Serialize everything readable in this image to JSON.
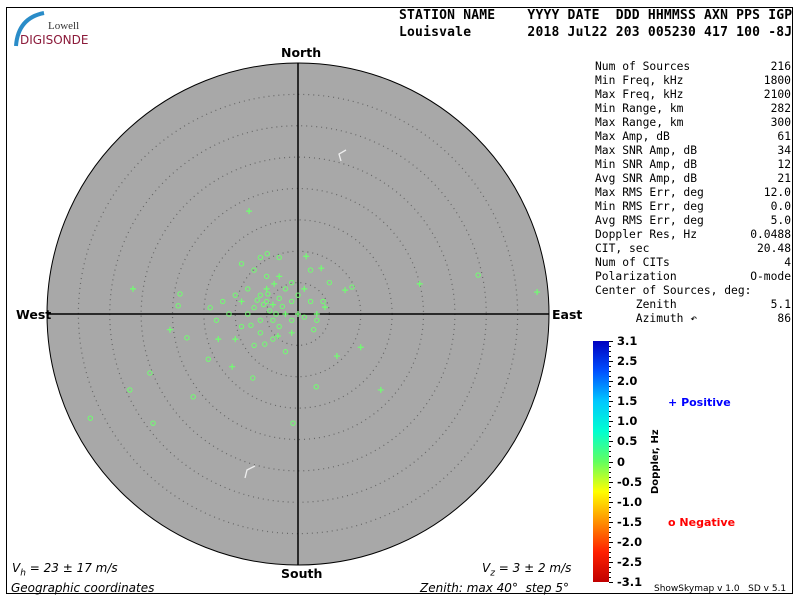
{
  "logo": {
    "line1": "Lowell",
    "line2": "DIGISONDE"
  },
  "header": {
    "labels": "STATION NAME    YYYY DATE  DDD HHMMSS AXN PPS IGP",
    "values": "Louisvale       2018 Jul22 203 005230 417 100 -8J"
  },
  "compass": {
    "north": "North",
    "south": "South",
    "west": "West",
    "east": "East"
  },
  "stats": [
    {
      "label": "Num of Sources",
      "value": "216"
    },
    {
      "label": "Min Freq, kHz",
      "value": "1800"
    },
    {
      "label": "Max Freq, kHz",
      "value": "2100"
    },
    {
      "label": "Min Range, km",
      "value": "282"
    },
    {
      "label": "Max Range, km",
      "value": "300"
    },
    {
      "label": "Max Amp, dB",
      "value": "61"
    },
    {
      "label": "Max SNR Amp, dB",
      "value": "34"
    },
    {
      "label": "Min SNR Amp, dB",
      "value": "12"
    },
    {
      "label": "Avg SNR Amp, dB",
      "value": "21"
    },
    {
      "label": "Max RMS Err, deg",
      "value": "12.0"
    },
    {
      "label": "Min RMS Err, deg",
      "value": "0.0"
    },
    {
      "label": "Avg RMS Err, deg",
      "value": "5.0"
    },
    {
      "label": "Doppler Res, Hz",
      "value": "0.0488"
    },
    {
      "label": "CIT, sec",
      "value": "20.48"
    },
    {
      "label": "Num of CITs",
      "value": "4"
    },
    {
      "label": "Polarization",
      "value": "O-mode"
    },
    {
      "label": "Center of Sources, deg:",
      "value": ""
    },
    {
      "label": "      Zenith",
      "value": "5.1"
    },
    {
      "label": "      Azimuth ↶",
      "value": "86"
    }
  ],
  "velocity": {
    "vh_sym": "V",
    "vh_sub": "h",
    "vh_text": " = 23 ± 17 m/s",
    "vz_sym": "V",
    "vz_sub": "z",
    "vz_text": " = 3 ± 2 m/s"
  },
  "footer": {
    "coords": "Geographic coordinates",
    "zenith": "Zenith: max 40°  step 5°",
    "version": "ShowSkymap v 1.0   SD v 5.1"
  },
  "colorbar": {
    "title": "Doppler, Hz",
    "ticks": [
      "3.1",
      "2.5",
      "2.0",
      "1.5",
      "1.0",
      "0.5",
      "0",
      "-0.5",
      "-1.0",
      "-1.5",
      "-2.0",
      "-2.5",
      "-3.1"
    ],
    "colors": [
      "#0000c0",
      "#0050ff",
      "#00c8ff",
      "#00ffd0",
      "#60ff60",
      "#ffff00",
      "#ff9000",
      "#ff2000",
      "#c00000"
    ]
  },
  "legend": {
    "positive": "Positive",
    "negative": "Negative",
    "positive_symbol": "+",
    "negative_symbol": "o",
    "positive_color": "#0000ff",
    "negative_color": "#ff0000"
  },
  "chart_data": {
    "type": "scatter",
    "projection": "polar skymap, zenith angle vs azimuth",
    "zenith_max_deg": 40,
    "zenith_step_deg": 5,
    "point_color": "#70ff70",
    "plot_background": "#a8a8a8",
    "points_note_units": "east/north zenith-angle components, deg",
    "points": [
      [
        -7.8,
        16.4,
        "+"
      ],
      [
        -26.3,
        4.0,
        "+"
      ],
      [
        28.7,
        6.2,
        "o"
      ],
      [
        38.1,
        3.5,
        "+"
      ],
      [
        19.4,
        4.8,
        "+"
      ],
      [
        -33.1,
        -16.6,
        "o"
      ],
      [
        -26.8,
        -12.1,
        "o"
      ],
      [
        -23.1,
        -17.4,
        "o"
      ],
      [
        -0.8,
        -17.4,
        "o"
      ],
      [
        13.2,
        -12.1,
        "+"
      ],
      [
        2.9,
        -11.6,
        "o"
      ],
      [
        6.2,
        -6.7,
        "+"
      ],
      [
        10.0,
        -5.3,
        "+"
      ],
      [
        -16.7,
        -13.2,
        "o"
      ],
      [
        -23.6,
        -9.4,
        "o"
      ],
      [
        -20.4,
        -2.5,
        "+"
      ],
      [
        -19.1,
        1.3,
        "o"
      ],
      [
        -18.8,
        3.2,
        "o"
      ],
      [
        -4.9,
        9.6,
        "o"
      ],
      [
        1.3,
        9.2,
        "+"
      ],
      [
        3.7,
        7.3,
        "+"
      ],
      [
        7.5,
        3.8,
        "+"
      ],
      [
        8.6,
        4.3,
        "o"
      ],
      [
        4.3,
        1.1,
        "+"
      ],
      [
        2.5,
        -2.5,
        "o"
      ],
      [
        -7.2,
        -10.2,
        "o"
      ],
      [
        -10.5,
        -8.4,
        "+"
      ],
      [
        -14.3,
        -7.2,
        "o"
      ],
      [
        -12.7,
        -4.0,
        "+"
      ],
      [
        -17.7,
        -3.8,
        "o"
      ],
      [
        -5.3,
        -4.8,
        "o"
      ],
      [
        -3.2,
        -3.5,
        "+"
      ],
      [
        -6,
        3,
        "o"
      ],
      [
        -5,
        2,
        "o"
      ],
      [
        -4,
        1.5,
        "+"
      ],
      [
        -3,
        2.5,
        "o"
      ],
      [
        -7,
        1,
        "o"
      ],
      [
        -8,
        0,
        "o"
      ],
      [
        -9,
        2,
        "+"
      ],
      [
        -6,
        -1,
        "o"
      ],
      [
        -4,
        -1,
        "o"
      ],
      [
        -2,
        0,
        "+"
      ],
      [
        -1,
        2,
        "o"
      ],
      [
        0,
        3,
        "o"
      ],
      [
        -2,
        4,
        "o"
      ],
      [
        -5,
        4,
        "+"
      ],
      [
        -8,
        4,
        "o"
      ],
      [
        -10,
        3,
        "o"
      ],
      [
        -3,
        -2,
        "o"
      ],
      [
        -1,
        -1,
        "o"
      ],
      [
        1,
        -0.5,
        "o"
      ],
      [
        -6,
        -3,
        "o"
      ],
      [
        -9,
        -2,
        "o"
      ],
      [
        -11,
        0,
        "o"
      ],
      [
        -12,
        2,
        "o"
      ],
      [
        -5,
        6,
        "o"
      ],
      [
        -7,
        7,
        "o"
      ],
      [
        -3,
        6,
        "+"
      ],
      [
        -1,
        5,
        "o"
      ],
      [
        1,
        4,
        "+"
      ],
      [
        2,
        2,
        "o"
      ],
      [
        0,
        0,
        "+"
      ],
      [
        -4,
        -4,
        "o"
      ],
      [
        -7,
        -5,
        "o"
      ],
      [
        -2,
        -6,
        "o"
      ],
      [
        3,
        -1,
        "o"
      ],
      [
        4,
        2,
        "o"
      ],
      [
        -13,
        -1,
        "o"
      ],
      [
        -10,
        -4,
        "+"
      ],
      [
        -14,
        1,
        "o"
      ],
      [
        -6,
        9,
        "o"
      ],
      [
        -9,
        8,
        "o"
      ],
      [
        2,
        7,
        "o"
      ],
      [
        5,
        5,
        "o"
      ],
      [
        -3,
        9,
        "o"
      ],
      [
        3,
        0,
        "+"
      ],
      [
        -1,
        -3,
        "+"
      ],
      [
        -4.5,
        0.5,
        "o"
      ],
      [
        -5.5,
        1.5,
        "o"
      ],
      [
        -3.5,
        0,
        "o"
      ],
      [
        -6.5,
        2.2,
        "o"
      ],
      [
        -2.5,
        1.2,
        "o"
      ],
      [
        -7.5,
        -1.8,
        "o"
      ],
      [
        -4.8,
        3.2,
        "o"
      ],
      [
        -3.8,
        4.8,
        "+"
      ]
    ]
  }
}
